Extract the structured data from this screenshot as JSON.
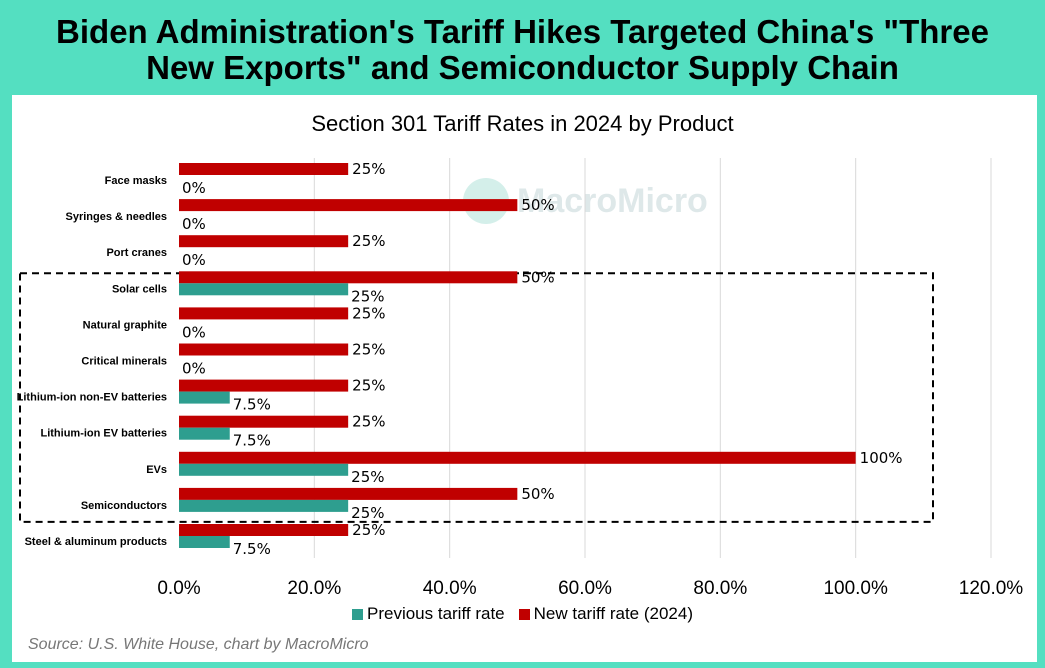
{
  "header": {
    "title_line1": "Biden Administration's Tariff Hikes Targeted China's \"Three",
    "title_line2": "New Exports\" and Semiconductor Supply Chain"
  },
  "watermark": "MacroMicro",
  "source": "Source: U.S. White House, chart by MacroMicro",
  "colors": {
    "previous": "#2e9e8f",
    "new": "#c00000",
    "frame": "#54dfc1"
  },
  "chart_data": {
    "type": "bar",
    "orientation": "horizontal",
    "title": "Section 301 Tariff Rates in 2024 by Product",
    "categories": [
      "Face masks",
      "Syringes & needles",
      "Port cranes",
      "Solar cells",
      "Natural graphite",
      "Critical minerals",
      "Lithium-ion non-EV batteries",
      "Lithium-ion EV batteries",
      "EVs",
      "Semiconductors",
      "Steel & aluminum products"
    ],
    "series": [
      {
        "name": "Previous tariff rate",
        "values": [
          0,
          0,
          0,
          25,
          0,
          0,
          7.5,
          7.5,
          25,
          25,
          7.5
        ],
        "labels": [
          "0%",
          "0%",
          "0%",
          "25%",
          "0%",
          "0%",
          "7.5%",
          "7.5%",
          "25%",
          "25%",
          "7.5%"
        ]
      },
      {
        "name": "New tariff rate (2024)",
        "values": [
          25,
          50,
          25,
          50,
          25,
          25,
          25,
          25,
          100,
          50,
          25
        ],
        "labels": [
          "25%",
          "50%",
          "25%",
          "50%",
          "25%",
          "25%",
          "25%",
          "25%",
          "100%",
          "50%",
          "25%"
        ]
      }
    ],
    "xlim": [
      0,
      120
    ],
    "ticks": [
      "0.0%",
      "20.0%",
      "40.0%",
      "60.0%",
      "80.0%",
      "100.0%",
      "120.0%"
    ],
    "tick_values": [
      0,
      20,
      40,
      60,
      80,
      100,
      120
    ],
    "grid": true,
    "legend_position": "bottom",
    "highlighted_categories": [
      "Solar cells",
      "Natural graphite",
      "Critical minerals",
      "Lithium-ion non-EV batteries",
      "Lithium-ion EV batteries",
      "EVs",
      "Semiconductors"
    ]
  }
}
